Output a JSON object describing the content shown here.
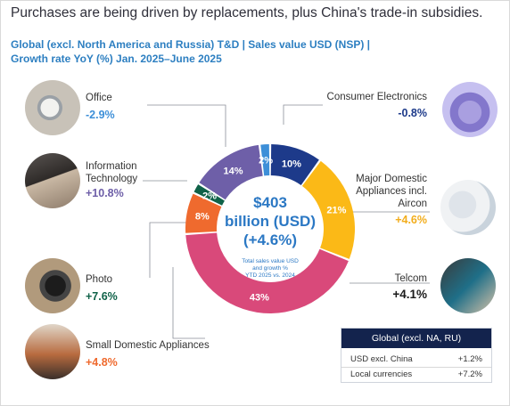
{
  "headline": "Purchases are being driven by replacements, plus China's trade-in subsidies.",
  "subtitle_lines": [
    "Global (excl. North America and Russia) T&D | Sales value USD (NSP) |",
    "Growth rate YoY (%) Jan. 2025–June 2025"
  ],
  "center": {
    "line1": "$403",
    "line2": "billion (USD)",
    "line3": "(+4.6%)",
    "sub1": "Total sales value USD",
    "sub2": "and growth %",
    "sub3": "YTD 2025 vs. 2024"
  },
  "chart_data": {
    "type": "pie",
    "donut": true,
    "slices": [
      {
        "label": "Consumer Electronics",
        "value": 10,
        "value_label": "10%",
        "growth": "-0.8%",
        "color": "#1d3a8a",
        "growth_color": "#1d3a8a"
      },
      {
        "label": "Major Domestic Appliances incl. Aircon",
        "value": 21,
        "value_label": "21%",
        "growth": "+4.6%",
        "color": "#fbb917",
        "growth_color": "#f2ad1c"
      },
      {
        "label": "Telcom",
        "value": 43,
        "value_label": "43%",
        "growth": "+4.1%",
        "color": "#d9497a",
        "growth_color": "#1a1a1a"
      },
      {
        "label": "Small Domestic Appliances",
        "value": 8,
        "value_label": "8%",
        "growth": "+4.8%",
        "color": "#ef6a2e",
        "growth_color": "#ef6a2e"
      },
      {
        "label": "Photo",
        "value": 2,
        "value_label": "2%",
        "growth": "+7.6%",
        "color": "#0f6248",
        "growth_color": "#0f6248"
      },
      {
        "label": "Information Technology",
        "value": 14,
        "value_label": "14%",
        "growth": "+10.8%",
        "color": "#6e5fa8",
        "growth_color": "#6e5fa8"
      },
      {
        "label": "Office",
        "value": 2,
        "value_label": "2%",
        "growth": "-2.9%",
        "color": "#3d8fd8",
        "growth_color": "#3d8fd8"
      }
    ]
  },
  "labels": {
    "office": "Office",
    "it_line1": "Information",
    "it_line2": "Technology",
    "photo": "Photo",
    "sda": "Small Domestic Appliances",
    "ce": "Consumer Electronics",
    "mda_line1": "Major Domestic",
    "mda_line2": "Appliances incl.",
    "mda_line3": "Aircon",
    "telcom": "Telcom"
  },
  "table": {
    "title": "Global (excl. NA, RU)",
    "rows": [
      {
        "label": "USD excl. China",
        "value": "+1.2%"
      },
      {
        "label": "Local currencies",
        "value": "+7.2%"
      }
    ]
  }
}
